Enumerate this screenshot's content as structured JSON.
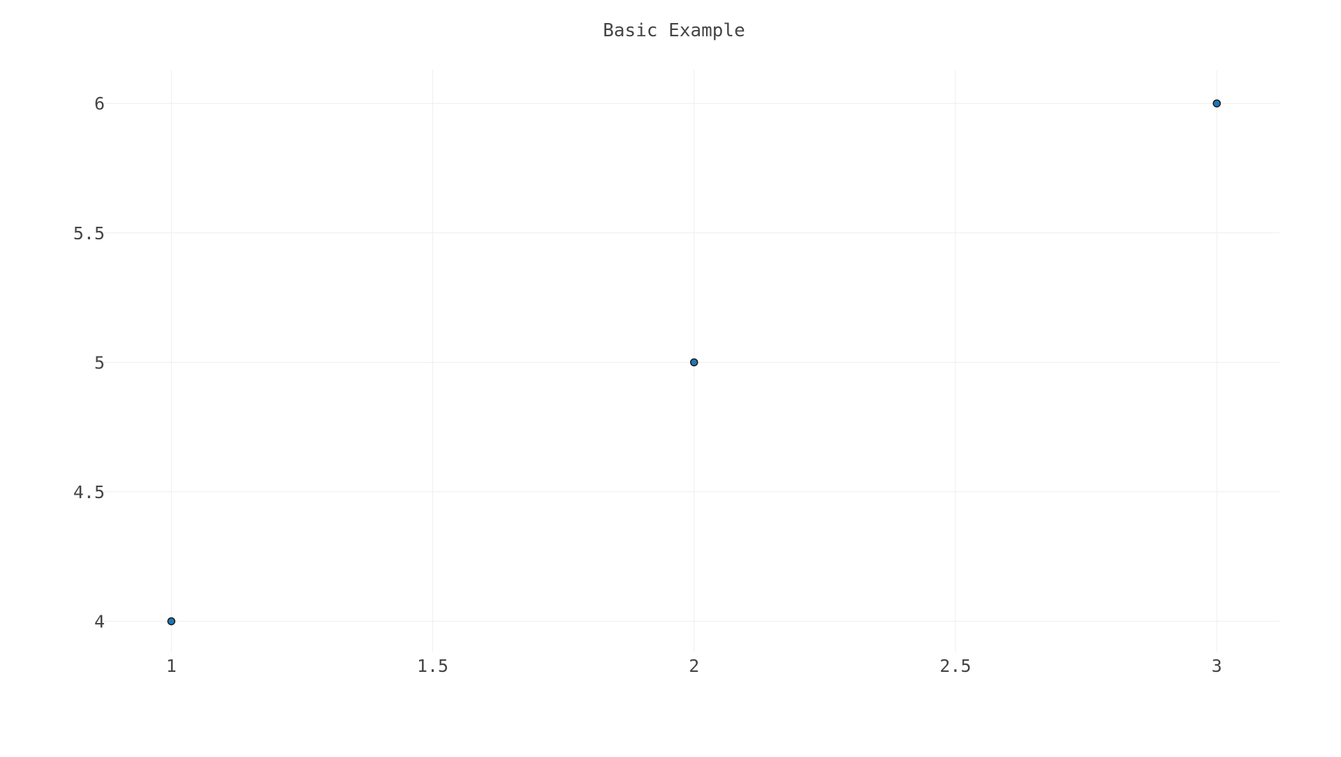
{
  "chart_data": {
    "type": "scatter",
    "title": "Basic Example",
    "xlabel": "",
    "ylabel": "",
    "x": [
      1,
      2,
      3
    ],
    "y": [
      4,
      5,
      6
    ],
    "xlim": [
      0.87,
      3.12
    ],
    "ylim": [
      3.88,
      6.13
    ],
    "xticks": [
      1,
      1.5,
      2,
      2.5,
      3
    ],
    "xtick_labels": [
      "1",
      "1.5",
      "2",
      "2.5",
      "3"
    ],
    "yticks": [
      4,
      4.5,
      5,
      5.5,
      6
    ],
    "ytick_labels": [
      "4",
      "4.5",
      "5",
      "5.5",
      "6"
    ],
    "grid": true,
    "legend": "none",
    "colors": {
      "marker_fill": "#1f77b4",
      "marker_stroke": "#1a1a1a",
      "grid": "#eeeeee",
      "text": "#444444",
      "background": "#ffffff"
    }
  }
}
